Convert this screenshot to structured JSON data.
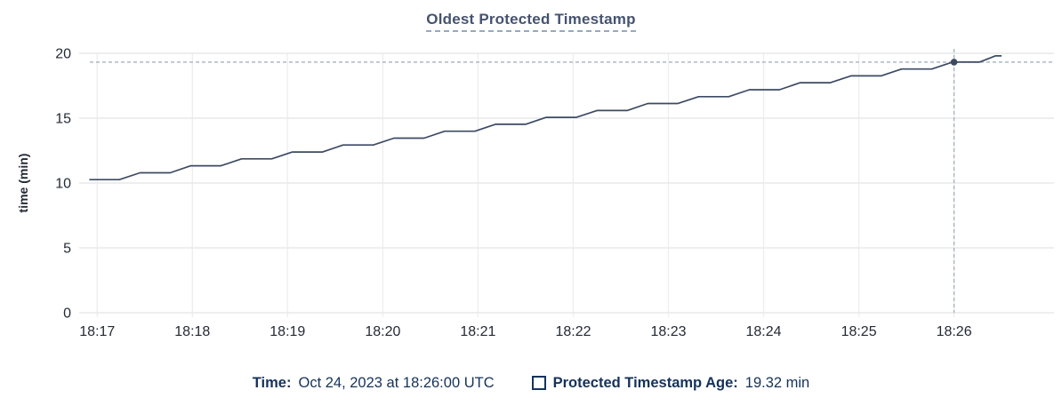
{
  "chart": {
    "title": "Oldest Protected Timestamp"
  },
  "colors": {
    "line": "#3d4a63",
    "dot": "#3d4a63",
    "crosshair": "#a3b2bf",
    "grid_h": "#e9e9e9",
    "grid_v": "#eeeeee",
    "axis_text": "#242a35",
    "tooltip_text": "#15325a"
  },
  "chart_data": {
    "type": "line",
    "title": "Oldest Protected Timestamp",
    "xlabel": "",
    "ylabel": "time (min)",
    "ylim": [
      0,
      20
    ],
    "yticks": [
      0,
      5,
      10,
      15,
      20
    ],
    "grid": true,
    "legend_position": "bottom",
    "x_range_seconds": [
      -8,
      603
    ],
    "x_ticks": [
      {
        "seconds": 0,
        "label": "18:17"
      },
      {
        "seconds": 60,
        "label": "18:18"
      },
      {
        "seconds": 120,
        "label": "18:19"
      },
      {
        "seconds": 180,
        "label": "18:20"
      },
      {
        "seconds": 240,
        "label": "18:21"
      },
      {
        "seconds": 300,
        "label": "18:22"
      },
      {
        "seconds": 360,
        "label": "18:23"
      },
      {
        "seconds": 420,
        "label": "18:24"
      },
      {
        "seconds": 480,
        "label": "18:25"
      },
      {
        "seconds": 540,
        "label": "18:26"
      }
    ],
    "series": [
      {
        "name": "Protected Timestamp Age",
        "unit": "min",
        "points": [
          [
            -5,
            10.26
          ],
          [
            14,
            10.26
          ],
          [
            27,
            10.79
          ],
          [
            46,
            10.79
          ],
          [
            59,
            11.33
          ],
          [
            78,
            11.33
          ],
          [
            91,
            11.86
          ],
          [
            110,
            11.86
          ],
          [
            123,
            12.39
          ],
          [
            142,
            12.39
          ],
          [
            155,
            12.93
          ],
          [
            174,
            12.93
          ],
          [
            187,
            13.46
          ],
          [
            206,
            13.46
          ],
          [
            219,
            13.99
          ],
          [
            238,
            13.99
          ],
          [
            251,
            14.53
          ],
          [
            270,
            14.53
          ],
          [
            283,
            15.06
          ],
          [
            302,
            15.06
          ],
          [
            315,
            15.59
          ],
          [
            334,
            15.59
          ],
          [
            347,
            16.13
          ],
          [
            366,
            16.13
          ],
          [
            379,
            16.66
          ],
          [
            398,
            16.66
          ],
          [
            411,
            17.19
          ],
          [
            430,
            17.19
          ],
          [
            443,
            17.73
          ],
          [
            462,
            17.73
          ],
          [
            475,
            18.26
          ],
          [
            494,
            18.26
          ],
          [
            507,
            18.79
          ],
          [
            526,
            18.79
          ],
          [
            539,
            19.32
          ],
          [
            556,
            19.32
          ],
          [
            566,
            19.8
          ],
          [
            570,
            19.8
          ]
        ]
      }
    ],
    "hover": {
      "seconds": 540,
      "value": 19.32,
      "time_text": "Oct 24, 2023 at 18:26:00 UTC"
    }
  },
  "tooltip": {
    "time_label": "Time:",
    "time_value": "Oct 24, 2023 at 18:26:00 UTC",
    "series_label": "Protected Timestamp Age:",
    "series_value": "19.32 min"
  }
}
